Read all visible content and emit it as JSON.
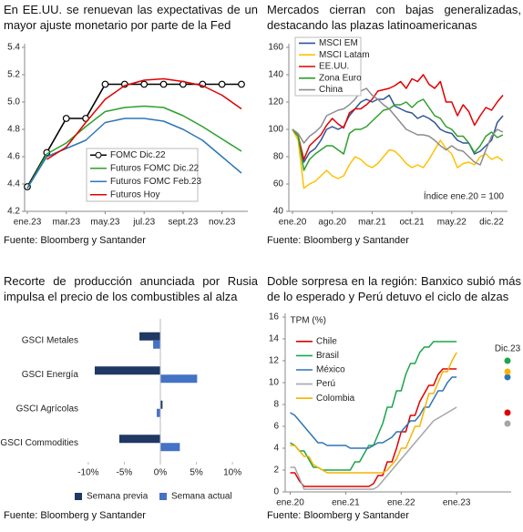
{
  "chart_data": [
    {
      "type": "line",
      "title": "En EE.UU. se renuevan las expectativas de un mayor ajuste monetario por parte de la Fed",
      "source": "Fuente: Bloomberg y Santander",
      "categories": [
        "ene.23",
        null,
        "mar.23",
        null,
        "may.23",
        null,
        "jul.23",
        null,
        "sept.23",
        null,
        "nov.23",
        null
      ],
      "ylim": [
        4.2,
        5.4
      ],
      "yticks": [
        4.2,
        4.4,
        4.6,
        4.8,
        {
          "value": 5,
          "label": "5.0"
        },
        5.2,
        5.4
      ],
      "legend": "bottom-center",
      "series": [
        {
          "name": "FOMC Dic.22",
          "color": "#000000",
          "markers": true,
          "values": [
            4.38,
            4.63,
            4.88,
            4.88,
            5.13,
            5.13,
            5.13,
            5.13,
            5.13,
            5.13,
            5.13,
            5.13
          ]
        },
        {
          "name": "Futuros FOMC Dic.22",
          "color": "#2ca02c",
          "values": [
            4.37,
            4.62,
            4.7,
            4.82,
            4.93,
            4.96,
            4.97,
            4.96,
            4.9,
            4.82,
            4.73,
            4.64
          ]
        },
        {
          "name": "Futuros FOMC Feb.23",
          "color": "#2e75b6",
          "values": [
            4.37,
            4.6,
            4.66,
            4.72,
            4.85,
            4.88,
            4.88,
            4.86,
            4.8,
            4.72,
            4.6,
            4.48
          ]
        },
        {
          "name": "Futuros Hoy",
          "color": "#e00000",
          "values": [
            null,
            4.58,
            4.67,
            4.85,
            5.02,
            5.12,
            5.16,
            5.17,
            5.15,
            5.12,
            5.05,
            4.95
          ]
        }
      ]
    },
    {
      "type": "line",
      "title": "Mercados cierran con bajas generalizadas, destacando las plazas latinoamericanas",
      "source": "Fuente: Bloomberg y Santander",
      "annotation": "Índice ene.20 = 100",
      "categories": [
        "ene.20",
        null,
        null,
        null,
        null,
        null,
        null,
        "ago.20",
        null,
        null,
        null,
        null,
        null,
        null,
        "mar.21",
        null,
        null,
        null,
        null,
        null,
        null,
        "oct.21",
        null,
        null,
        null,
        null,
        null,
        null,
        "may.22",
        null,
        null,
        null,
        null,
        null,
        null,
        "dic.22",
        null,
        null
      ],
      "ylim": [
        40,
        160
      ],
      "yticks": [
        40,
        60,
        80,
        100,
        120,
        140,
        160
      ],
      "legend": "top-left",
      "series": [
        {
          "name": "MSCI EM",
          "color": "#2f5597",
          "values": [
            100,
            95,
            76,
            83,
            86,
            92,
            100,
            102,
            100,
            102,
            110,
            115,
            120,
            122,
            120,
            122,
            122,
            125,
            117,
            115,
            113,
            112,
            108,
            110,
            108,
            105,
            100,
            98,
            97,
            92,
            90,
            90,
            82,
            84,
            88,
            92,
            105,
            110
          ]
        },
        {
          "name": "MSCI Latam",
          "color": "#ffc000",
          "values": [
            100,
            92,
            57,
            60,
            62,
            66,
            70,
            66,
            64,
            66,
            74,
            80,
            78,
            74,
            72,
            75,
            80,
            85,
            84,
            80,
            75,
            72,
            74,
            72,
            78,
            85,
            92,
            86,
            82,
            72,
            75,
            76,
            74,
            80,
            82,
            78,
            80,
            77
          ]
        },
        {
          "name": "EE.UU.",
          "color": "#e00000",
          "values": [
            100,
            95,
            78,
            88,
            92,
            96,
            103,
            108,
            104,
            101,
            112,
            115,
            115,
            118,
            122,
            128,
            129,
            130,
            132,
            135,
            130,
            137,
            135,
            140,
            133,
            130,
            135,
            120,
            120,
            110,
            118,
            113,
            103,
            110,
            116,
            114,
            120,
            125
          ]
        },
        {
          "name": "Zona Euro",
          "color": "#2ca02c",
          "values": [
            100,
            95,
            70,
            78,
            82,
            85,
            88,
            88,
            85,
            82,
            97,
            100,
            100,
            102,
            106,
            110,
            114,
            115,
            118,
            118,
            120,
            116,
            120,
            122,
            116,
            110,
            108,
            102,
            100,
            95,
            95,
            90,
            83,
            88,
            95,
            98,
            94,
            96
          ]
        },
        {
          "name": "China",
          "color": "#8c8c8c",
          "values": [
            100,
            97,
            90,
            95,
            98,
            102,
            110,
            112,
            114,
            115,
            118,
            122,
            128,
            130,
            125,
            122,
            118,
            115,
            110,
            105,
            100,
            98,
            96,
            96,
            95,
            92,
            88,
            85,
            88,
            85,
            84,
            80,
            76,
            74,
            85,
            95,
            100,
            98
          ]
        }
      ]
    },
    {
      "type": "bar",
      "orientation": "horizontal",
      "title": "Recorte de producción anunciada por Rusia impulsa el precio de los combustibles al alza",
      "source": "Fuente: Bloomberg y Santander",
      "categories": [
        "GSCI Metales",
        "GSCI Energía",
        "GSCI Agrícolas",
        "GSCI Commodities"
      ],
      "xlim": [
        -11.5,
        11.5
      ],
      "xticks": [
        {
          "value": -10,
          "label": "-10%"
        },
        {
          "value": -5,
          "label": "-5%"
        },
        {
          "value": 0,
          "label": "0%"
        },
        {
          "value": 5,
          "label": "5%"
        },
        {
          "value": 10,
          "label": "10%"
        }
      ],
      "legend": "bottom",
      "series": [
        {
          "name": "Semana previa",
          "color": "#1f3864",
          "values": [
            -2.9,
            -9.1,
            0.3,
            -5.7
          ]
        },
        {
          "name": "Semana actual",
          "color": "#4472c4",
          "values": [
            -1,
            5.1,
            -0.5,
            2.7
          ]
        }
      ]
    },
    {
      "type": "line",
      "title": "Doble sorpresa en la región: Banxico subió más de lo esperado y Perú detuvo el ciclo de alzas",
      "source": "Fuente: Bloomberg y Santander",
      "y_label": "TPM (%)",
      "forecast_label": "Dic.23",
      "categories": [
        "ene.20",
        null,
        null,
        null,
        null,
        null,
        null,
        null,
        null,
        null,
        null,
        null,
        "ene.21",
        null,
        null,
        null,
        null,
        null,
        null,
        null,
        null,
        null,
        null,
        null,
        "ene.22",
        null,
        null,
        null,
        null,
        null,
        null,
        null,
        null,
        null,
        null,
        null,
        "ene.23",
        null,
        null,
        null,
        null,
        null,
        null,
        null,
        null,
        null,
        null,
        null
      ],
      "ylim": [
        0,
        16
      ],
      "yticks": [
        0,
        2,
        4,
        6,
        8,
        10,
        12,
        14,
        16
      ],
      "legend": "top-left",
      "series": [
        {
          "name": "Chile",
          "color": "#e00000",
          "values": [
            1.75,
            1.75,
            1.0,
            0.5,
            0.5,
            0.5,
            0.5,
            0.5,
            0.5,
            0.5,
            0.5,
            0.5,
            0.5,
            0.5,
            0.5,
            0.5,
            0.5,
            0.5,
            0.75,
            1.5,
            1.5,
            2.75,
            2.75,
            4.0,
            5.5,
            5.5,
            7.0,
            7.0,
            8.25,
            9.0,
            9.75,
            9.75,
            10.75,
            11.25,
            11.25,
            11.25,
            11.25,
            null,
            null,
            null,
            null,
            null,
            null,
            null,
            null,
            null,
            null,
            7.25
          ]
        },
        {
          "name": "Brasil",
          "color": "#1aa64a",
          "values": [
            4.5,
            4.25,
            3.75,
            3.75,
            3.0,
            2.25,
            2.25,
            2.0,
            2.0,
            2.0,
            2.0,
            2.0,
            2.0,
            2.0,
            2.75,
            2.75,
            3.5,
            4.25,
            4.25,
            5.25,
            6.25,
            7.75,
            7.75,
            9.25,
            9.25,
            10.75,
            11.75,
            11.75,
            12.75,
            13.25,
            13.25,
            13.75,
            13.75,
            13.75,
            13.75,
            13.75,
            13.75,
            null,
            null,
            null,
            null,
            null,
            null,
            null,
            null,
            null,
            null,
            12.0
          ]
        },
        {
          "name": "México",
          "color": "#2e75b6",
          "values": [
            7.25,
            7.0,
            6.5,
            6.0,
            5.5,
            5.0,
            4.5,
            4.5,
            4.25,
            4.25,
            4.25,
            4.25,
            4.25,
            4.0,
            4.0,
            4.0,
            4.0,
            4.0,
            4.25,
            4.5,
            4.5,
            4.75,
            5.0,
            5.5,
            5.5,
            6.0,
            6.5,
            6.5,
            7.0,
            7.75,
            7.75,
            8.5,
            9.25,
            9.25,
            10.0,
            10.5,
            10.5,
            null,
            null,
            null,
            null,
            null,
            null,
            null,
            null,
            null,
            null,
            10.5
          ]
        },
        {
          "name": "Perú",
          "color": "#a6a6a6",
          "values": [
            2.25,
            2.25,
            1.25,
            0.25,
            0.25,
            0.25,
            0.25,
            0.25,
            0.25,
            0.25,
            0.25,
            0.25,
            0.25,
            0.25,
            0.25,
            0.25,
            0.25,
            0.25,
            0.25,
            0.5,
            1.0,
            1.5,
            2.0,
            2.5,
            3.0,
            3.5,
            4.0,
            4.5,
            5.0,
            5.5,
            6.0,
            6.5,
            6.75,
            7.0,
            7.25,
            7.5,
            7.75,
            null,
            null,
            null,
            null,
            null,
            null,
            null,
            null,
            null,
            null,
            6.25
          ]
        },
        {
          "name": "Colombia",
          "color": "#f5b400",
          "values": [
            4.25,
            4.25,
            3.75,
            3.25,
            3.25,
            2.5,
            2.25,
            2.0,
            1.75,
            1.75,
            1.75,
            1.75,
            1.75,
            1.75,
            1.75,
            1.75,
            1.75,
            1.75,
            1.75,
            1.75,
            1.75,
            2.0,
            2.5,
            3.0,
            4.0,
            4.0,
            5.0,
            6.0,
            6.0,
            7.5,
            9.0,
            9.0,
            10.0,
            11.0,
            11.0,
            12.0,
            12.75,
            null,
            null,
            null,
            null,
            null,
            null,
            null,
            null,
            null,
            null,
            11.0
          ]
        }
      ]
    }
  ]
}
